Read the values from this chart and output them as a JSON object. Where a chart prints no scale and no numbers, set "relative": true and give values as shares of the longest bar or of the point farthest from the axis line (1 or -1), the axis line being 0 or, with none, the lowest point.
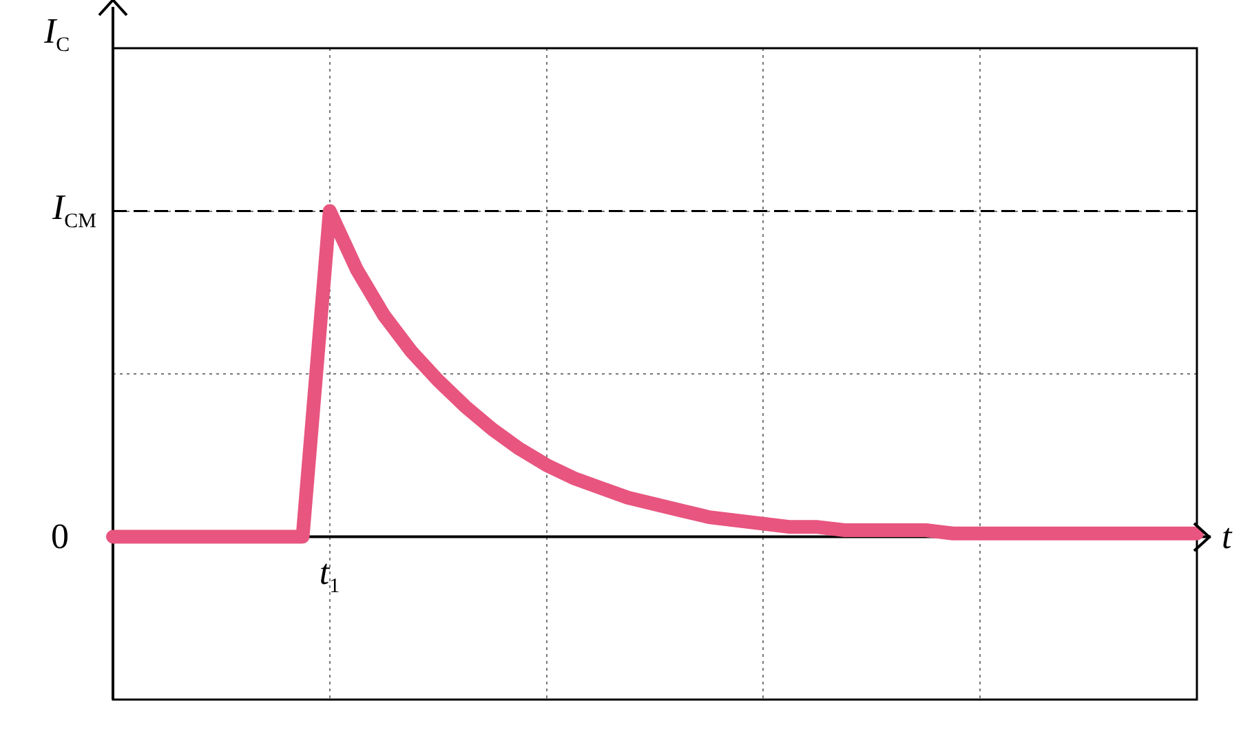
{
  "chart_data": {
    "type": "line",
    "relative": true,
    "xlabel": "t",
    "ylabel": "I$_{C}$",
    "categories": [
      null,
      null,
      null,
      null,
      null,
      null,
      null,
      null,
      null,
      null,
      null,
      null,
      null,
      null,
      null,
      null,
      null,
      null,
      null,
      null,
      null,
      null,
      null,
      null,
      null,
      null,
      null,
      null,
      null,
      null,
      null,
      null,
      null,
      null,
      null,
      null,
      null,
      null,
      null,
      null,
      null
    ],
    "series": [
      {
        "color": "#e8557f",
        "values": [
          0,
          0,
          0,
          0,
          0,
          0,
          0,
          0,
          1,
          0.82,
          0.68,
          0.57,
          0.48,
          0.4,
          0.33,
          0.27,
          0.22,
          0.18,
          0.15,
          0.12,
          0.1,
          0.08,
          0.06,
          0.05,
          0.04,
          0.03,
          0.03,
          0.02,
          0.02,
          0.02,
          0.02,
          0.01,
          0.01,
          0.01,
          0.01,
          0.01,
          0.01,
          0.01,
          0.01,
          0.01,
          0.01
        ]
      }
    ],
    "ref_lines": [
      {
        "axis": "y",
        "value": 1,
        "label": "I$_{CM}$",
        "color": "#000000",
        "line_style": "dashed"
      }
    ],
    "annotations": [
      "0",
      "t$_{1}$"
    ],
    "grid": true,
    "legend": false,
    "marker": "none",
    "line_style": "solid"
  }
}
